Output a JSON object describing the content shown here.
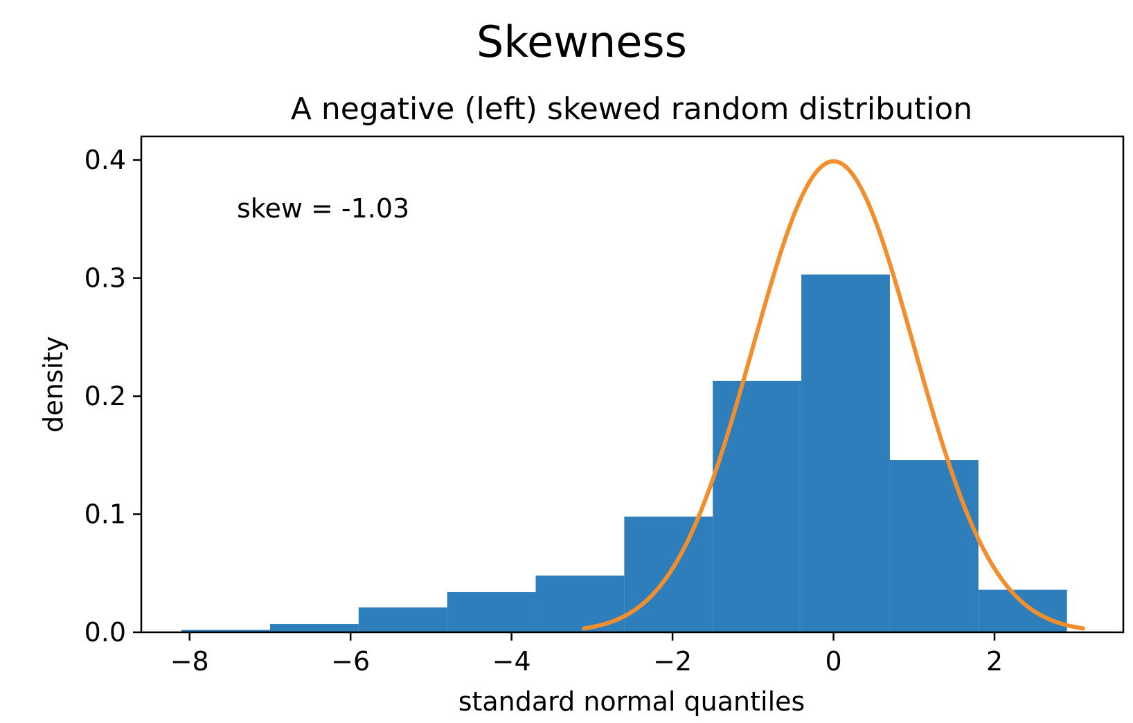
{
  "figure": {
    "suptitle": "Skewness"
  },
  "chart_data": {
    "type": "bar",
    "title": "A negative (left) skewed random distribution",
    "xlabel": "standard normal quantiles",
    "ylabel": "density",
    "annotation": "skew = -1.03",
    "xlim": [
      -8.6,
      3.6
    ],
    "ylim": [
      0.0,
      0.42
    ],
    "xticks": [
      {
        "value": -8,
        "label": "−8"
      },
      {
        "value": -6,
        "label": "−6"
      },
      {
        "value": -4,
        "label": "−4"
      },
      {
        "value": -2,
        "label": "−2"
      },
      {
        "value": 0,
        "label": "0"
      },
      {
        "value": 2,
        "label": "2"
      }
    ],
    "yticks": [
      {
        "value": 0.0,
        "label": "0.0"
      },
      {
        "value": 0.1,
        "label": "0.1"
      },
      {
        "value": 0.2,
        "label": "0.2"
      },
      {
        "value": 0.3,
        "label": "0.3"
      },
      {
        "value": 0.4,
        "label": "0.4"
      }
    ],
    "grid": false,
    "histogram": {
      "bin_edges": [
        -8.1,
        -7.0,
        -5.9,
        -4.8,
        -3.7,
        -2.6,
        -1.5,
        -0.4,
        0.7,
        1.8,
        2.9
      ],
      "densities": [
        0.002,
        0.007,
        0.021,
        0.034,
        0.048,
        0.098,
        0.213,
        0.303,
        0.146,
        0.036
      ],
      "color": "#2e7ebc"
    },
    "curve": {
      "type": "normal_pdf",
      "mean": 0,
      "std": 1,
      "x_range": [
        -3.1,
        3.1
      ],
      "color": "#f28e2b"
    }
  }
}
